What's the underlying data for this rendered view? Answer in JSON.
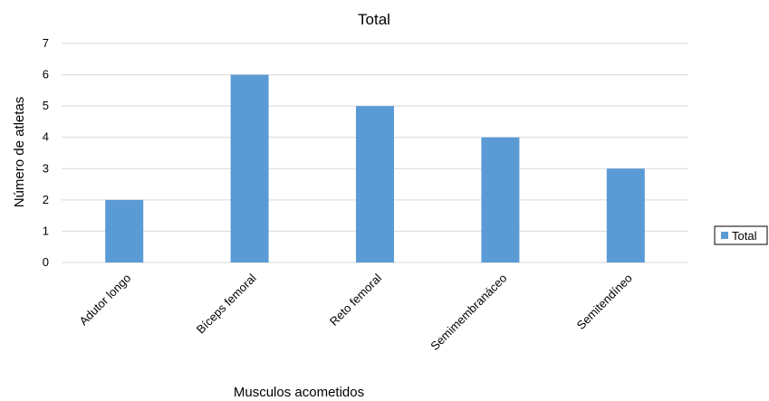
{
  "chart_data": {
    "type": "bar",
    "title": "Total",
    "xlabel": "Musculos acometidos",
    "ylabel": "Número de atletas",
    "categories": [
      "Adutor longo",
      "Bíceps femoral",
      "Reto femoral",
      "Semimembranáceo",
      "Semitendíneo"
    ],
    "series": [
      {
        "name": "Total",
        "values": [
          2,
          6,
          5,
          4,
          3
        ]
      }
    ],
    "ylim": [
      0,
      7
    ],
    "yticks": [
      "0",
      "1",
      "2",
      "3",
      "4",
      "5",
      "6",
      "7"
    ],
    "grid": true,
    "legend_position": "right",
    "bar_color": "#5b9bd5"
  }
}
